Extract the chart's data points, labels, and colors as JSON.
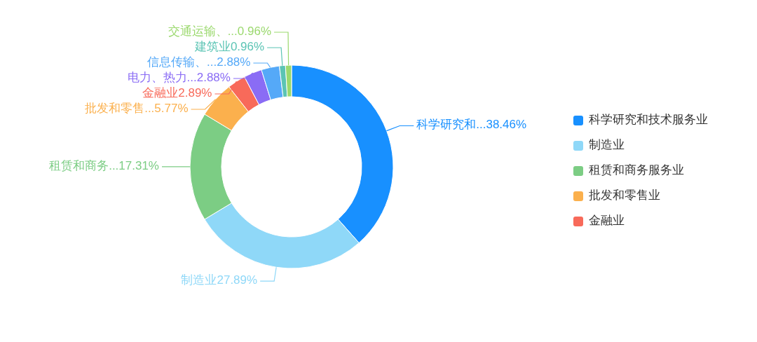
{
  "chart_data": {
    "type": "donut",
    "categories": [
      "科学研究和技术服务业",
      "制造业",
      "租赁和商务服务业",
      "批发和零售业",
      "金融业",
      "电力、热力...",
      "信息传输、...",
      "建筑业",
      "交通运输、..."
    ],
    "values": [
      38.46,
      27.89,
      17.31,
      5.77,
      2.89,
      2.88,
      2.88,
      0.96,
      0.96
    ],
    "colors": [
      "#1890ff",
      "#8fd8f8",
      "#7ccd84",
      "#fbb04d",
      "#f86a5a",
      "#8a6cf5",
      "#55a9f8",
      "#5bc4b4",
      "#9bd96e"
    ],
    "value_labels": [
      "38.46%",
      "27.89%",
      "17.31%",
      "5.77%",
      "2.89%",
      "2.88%",
      "2.88%",
      "0.96%",
      "0.96%"
    ],
    "annotations": [
      "科学研究和...",
      "制造业",
      "租赁和商务...",
      "批发和零售...",
      "金融业"
    ],
    "legend": "right"
  }
}
